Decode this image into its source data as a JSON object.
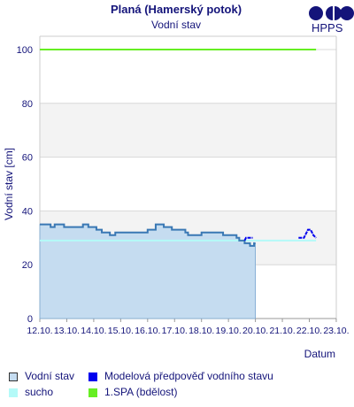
{
  "chart_data": {
    "type": "area",
    "title": "Planá (Hamerský potok)",
    "subtitle": "Vodní stav",
    "ylabel": "Vodní stav [cm]",
    "xlabel": "Datum",
    "ylim": [
      0,
      100
    ],
    "yticks": [
      0,
      20,
      40,
      60,
      80,
      100
    ],
    "xlim": [
      0,
      11
    ],
    "xticks": [
      {
        "x": 0,
        "label": "12.10."
      },
      {
        "x": 1,
        "label": "13.10."
      },
      {
        "x": 2,
        "label": "14.10."
      },
      {
        "x": 3,
        "label": "15.10."
      },
      {
        "x": 4,
        "label": "16.10."
      },
      {
        "x": 5,
        "label": "17.10."
      },
      {
        "x": 6,
        "label": "18.10."
      },
      {
        "x": 7,
        "label": "19.10."
      },
      {
        "x": 8,
        "label": "20.10."
      },
      {
        "x": 9,
        "label": "21.10."
      },
      {
        "x": 10,
        "label": "22.10."
      },
      {
        "x": 11,
        "label": "23.10."
      }
    ],
    "series": [
      {
        "name": "Vodní stav",
        "color": "#3a78b4",
        "fill": "#c5dcf0",
        "points": [
          [
            0.0,
            35
          ],
          [
            0.4,
            35
          ],
          [
            0.4,
            34
          ],
          [
            0.55,
            34
          ],
          [
            0.55,
            35
          ],
          [
            0.9,
            35
          ],
          [
            0.9,
            34
          ],
          [
            1.6,
            34
          ],
          [
            1.6,
            35
          ],
          [
            1.8,
            35
          ],
          [
            1.8,
            34
          ],
          [
            2.1,
            34
          ],
          [
            2.1,
            33
          ],
          [
            2.3,
            33
          ],
          [
            2.3,
            32
          ],
          [
            2.6,
            32
          ],
          [
            2.6,
            31
          ],
          [
            2.8,
            31
          ],
          [
            2.8,
            32
          ],
          [
            4.0,
            32
          ],
          [
            4.0,
            33
          ],
          [
            4.3,
            33
          ],
          [
            4.3,
            35
          ],
          [
            4.6,
            35
          ],
          [
            4.6,
            34
          ],
          [
            4.9,
            34
          ],
          [
            4.9,
            33
          ],
          [
            5.4,
            33
          ],
          [
            5.4,
            32
          ],
          [
            5.5,
            32
          ],
          [
            5.5,
            31
          ],
          [
            6.0,
            31
          ],
          [
            6.0,
            32
          ],
          [
            6.8,
            32
          ],
          [
            6.8,
            31
          ],
          [
            7.3,
            31
          ],
          [
            7.3,
            30
          ],
          [
            7.4,
            30
          ],
          [
            7.4,
            29
          ],
          [
            7.6,
            29
          ],
          [
            7.6,
            28
          ],
          [
            7.8,
            28
          ],
          [
            7.8,
            27
          ],
          [
            7.95,
            27
          ],
          [
            7.95,
            28
          ],
          [
            8.0,
            28
          ]
        ]
      },
      {
        "name": "Modelová předpověď vodního stavu",
        "color": "#0000ee",
        "segments": [
          [
            [
              7.6,
              29
            ],
            [
              7.65,
              30
            ],
            [
              7.9,
              30
            ]
          ],
          [
            [
              9.6,
              30
            ],
            [
              9.8,
              30
            ],
            [
              9.9,
              32
            ],
            [
              9.95,
              33
            ],
            [
              10.05,
              33
            ],
            [
              10.15,
              31
            ],
            [
              10.25,
              30
            ]
          ]
        ]
      },
      {
        "name": "sucho",
        "color": "#b4faf8",
        "value": 29,
        "x": [
          0,
          10.25
        ]
      },
      {
        "name": "1.SPA (bdělost)",
        "color": "#66ee22",
        "value": 100,
        "x": [
          0,
          10.25
        ]
      }
    ],
    "bands": [
      [
        20,
        40
      ],
      [
        60,
        80
      ]
    ],
    "grid": true,
    "legend_position": "bottom"
  },
  "legend": [
    {
      "label": "Vodní stav",
      "swatch": "#c5dcf0",
      "border": "#333333"
    },
    {
      "label": "Modelová předpověď vodního stavu",
      "swatch": "#0000ee",
      "border": "#0000ee"
    },
    {
      "label": "sucho",
      "swatch": "#b4faf8",
      "border": "#b4faf8"
    },
    {
      "label": "1.SPA (bdělost)",
      "swatch": "#66ee22",
      "border": "#66ee22"
    }
  ],
  "logo": {
    "text": "HPPS",
    "color": "#14147a"
  }
}
